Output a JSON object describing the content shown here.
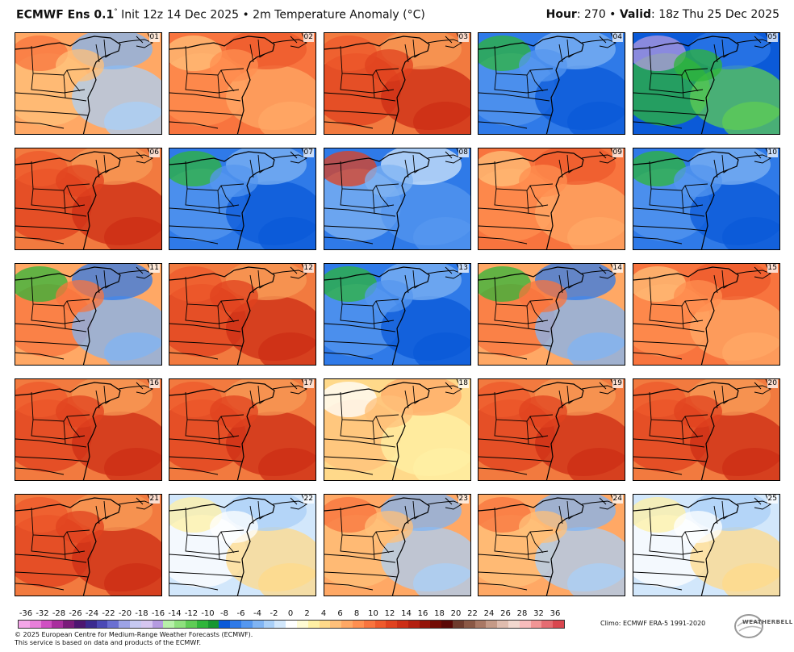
{
  "header": {
    "model": "ECMWF Ens 0.1",
    "degree": "°",
    "init_text": " Init 12z 14 Dec 2025 • 2m Temperature Anomaly (°C)",
    "hour_label": "Hour",
    "hour_value": ": 270 • ",
    "valid_label": "Valid",
    "valid_value": ": 18z Thu 25 Dec 2025"
  },
  "panels": [
    {
      "id": "01",
      "scheme": "mixwarm"
    },
    {
      "id": "06",
      "scheme": "hot"
    },
    {
      "id": "11",
      "scheme": "mixcoldnorth"
    },
    {
      "id": "16",
      "scheme": "hot"
    },
    {
      "id": "21",
      "scheme": "hot"
    },
    {
      "id": "02",
      "scheme": "warm"
    },
    {
      "id": "07",
      "scheme": "cold"
    },
    {
      "id": "12",
      "scheme": "hot"
    },
    {
      "id": "17",
      "scheme": "hot"
    },
    {
      "id": "22",
      "scheme": "cool"
    },
    {
      "id": "03",
      "scheme": "hot"
    },
    {
      "id": "08",
      "scheme": "coldsw"
    },
    {
      "id": "13",
      "scheme": "cold"
    },
    {
      "id": "18",
      "scheme": "mild"
    },
    {
      "id": "23",
      "scheme": "mixwarm"
    },
    {
      "id": "04",
      "scheme": "cold"
    },
    {
      "id": "09",
      "scheme": "warm"
    },
    {
      "id": "14",
      "scheme": "mixcoldnorth"
    },
    {
      "id": "19",
      "scheme": "hot"
    },
    {
      "id": "24",
      "scheme": "mixwarm"
    },
    {
      "id": "05",
      "scheme": "verycold"
    },
    {
      "id": "10",
      "scheme": "cold"
    },
    {
      "id": "15",
      "scheme": "warm"
    },
    {
      "id": "20",
      "scheme": "hot"
    },
    {
      "id": "25",
      "scheme": "cool"
    }
  ],
  "colorbar": {
    "labels": [
      "-36",
      "-32",
      "-28",
      "-26",
      "-24",
      "-22",
      "-20",
      "-18",
      "-16",
      "-14",
      "-12",
      "-10",
      "-8",
      "-6",
      "-4",
      "-2",
      "0",
      "2",
      "4",
      "6",
      "8",
      "10",
      "12",
      "14",
      "16",
      "18",
      "20",
      "22",
      "24",
      "26",
      "28",
      "32",
      "36"
    ],
    "colors": [
      "#f4a6e8",
      "#e77fd9",
      "#cf4fc2",
      "#a92f9e",
      "#7a1c7a",
      "#4d1670",
      "#3b2a8f",
      "#4b49b5",
      "#6a6fd2",
      "#9da3e6",
      "#c6c8f1",
      "#d6c6f0",
      "#b59be0",
      "#b7f0a9",
      "#8fe07e",
      "#5fcc55",
      "#2fb53a",
      "#179631",
      "#0b5ad8",
      "#2f7ae8",
      "#5597ef",
      "#80b4f3",
      "#a9cff7",
      "#d2e7fb",
      "#ffffff",
      "#fffbd4",
      "#fff0a4",
      "#ffd98a",
      "#ffc07a",
      "#ffa865",
      "#ff8f50",
      "#f8743e",
      "#ee5a2c",
      "#e0421f",
      "#cc2e16",
      "#b31f10",
      "#941409",
      "#730c05",
      "#5a0806",
      "#6e3b2d",
      "#8a5845",
      "#a97864",
      "#c59a87",
      "#dfbcae",
      "#f2d8cf",
      "#f7bcbc",
      "#f19595",
      "#e56c72",
      "#d9474f"
    ],
    "climo": "Climo: ECMWF ERA-5 1991-2020"
  },
  "footer": {
    "line1": "© 2025 European Centre for Medium-Range Weather Forecasts (ECMWF).",
    "line2": "This service is based on data and products of the ECMWF."
  },
  "logo": {
    "text": "WEATHERBELL"
  },
  "scheme_colors": {
    "hot": [
      "#f27a3f",
      "#e0421f",
      "#cc2e16",
      "#f79b57",
      "#ee5a2c"
    ],
    "warm": [
      "#f8743e",
      "#ff8f50",
      "#ffa865",
      "#ee5a2c",
      "#ffc07a"
    ],
    "mixwarm": [
      "#ffa865",
      "#ffc07a",
      "#a9cff7",
      "#80b4f3",
      "#f8743e"
    ],
    "mild": [
      "#ffd98a",
      "#ffc07a",
      "#fff0a4",
      "#ffa865",
      "#ffffff"
    ],
    "cool": [
      "#d2e7fb",
      "#ffffff",
      "#ffd98a",
      "#a9cff7",
      "#fff0a4"
    ],
    "cold": [
      "#2f7ae8",
      "#5597ef",
      "#0b5ad8",
      "#80b4f3",
      "#2fb53a"
    ],
    "coldsw": [
      "#2f7ae8",
      "#80b4f3",
      "#5597ef",
      "#d2e7fb",
      "#e0421f"
    ],
    "verycold": [
      "#0b5ad8",
      "#2fb53a",
      "#5fcc55",
      "#2f7ae8",
      "#b59be0"
    ],
    "mixcoldnorth": [
      "#ffa865",
      "#f8743e",
      "#80b4f3",
      "#2f7ae8",
      "#2fb53a"
    ]
  }
}
